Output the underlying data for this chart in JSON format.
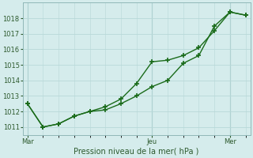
{
  "title": "",
  "xlabel": "Pression niveau de la mer( hPa )",
  "ylabel": "",
  "background_color": "#d5ecec",
  "grid_color": "#b8d8d8",
  "line_color": "#1a6b1a",
  "ylim": [
    1010.5,
    1019.0
  ],
  "yticks": [
    1011,
    1012,
    1013,
    1014,
    1015,
    1016,
    1017,
    1018
  ],
  "xtick_labels": [
    "Mar",
    "Jeu",
    "Mer"
  ],
  "xtick_positions": [
    0,
    8,
    13
  ],
  "xlim": [
    -0.3,
    14.3
  ],
  "series1_x": [
    0,
    1,
    2,
    3,
    4,
    5,
    6,
    7,
    8,
    9,
    10,
    11,
    12,
    13,
    14
  ],
  "series1_y": [
    1012.5,
    1011.0,
    1011.2,
    1011.7,
    1012.0,
    1012.1,
    1012.5,
    1013.0,
    1013.6,
    1014.0,
    1015.1,
    1015.6,
    1017.5,
    1018.4,
    1018.2
  ],
  "series2_x": [
    0,
    1,
    2,
    3,
    4,
    5,
    6,
    7,
    8,
    9,
    10,
    11,
    12,
    13,
    14
  ],
  "series2_y": [
    1012.5,
    1011.0,
    1011.2,
    1011.7,
    1012.0,
    1012.3,
    1012.8,
    1013.8,
    1015.2,
    1015.3,
    1015.6,
    1016.1,
    1017.2,
    1018.4,
    1018.2
  ],
  "vline_positions": [
    0,
    8,
    13
  ],
  "marker_size": 4,
  "line_width": 1.0,
  "tick_fontsize": 6,
  "xlabel_fontsize": 7
}
